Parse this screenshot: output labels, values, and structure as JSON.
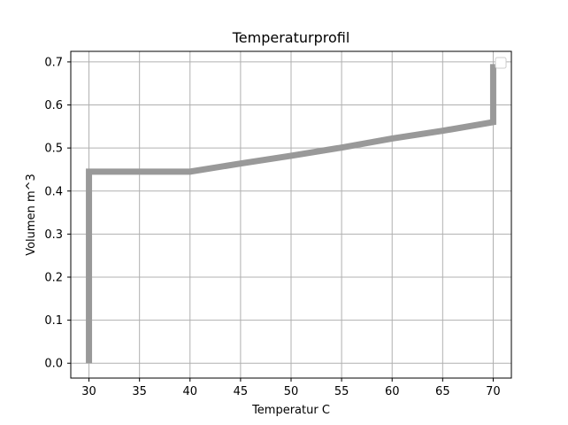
{
  "chart_data": {
    "type": "line",
    "title": "Temperaturprofil",
    "xlabel": "Temperatur C",
    "ylabel": "Volumen m^3",
    "xlim": [
      28.2,
      71.8
    ],
    "ylim": [
      -0.0345,
      0.7245
    ],
    "xticks": [
      30,
      35,
      40,
      45,
      50,
      55,
      60,
      65,
      70
    ],
    "xtick_labels": [
      "30",
      "35",
      "40",
      "45",
      "50",
      "55",
      "60",
      "65",
      "70"
    ],
    "yticks": [
      0.0,
      0.1,
      0.2,
      0.3,
      0.4,
      0.5,
      0.6,
      0.7
    ],
    "ytick_labels": [
      "0.0",
      "0.1",
      "0.2",
      "0.3",
      "0.4",
      "0.5",
      "0.6",
      "0.7"
    ],
    "grid": true,
    "legend": "top-right",
    "series": [
      {
        "color": "#999999",
        "x": [
          30,
          30,
          40,
          45,
          50,
          55,
          60,
          65,
          70,
          70
        ],
        "y": [
          0.0,
          0.445,
          0.445,
          0.464,
          0.482,
          0.501,
          0.522,
          0.54,
          0.56,
          0.695
        ]
      }
    ]
  }
}
